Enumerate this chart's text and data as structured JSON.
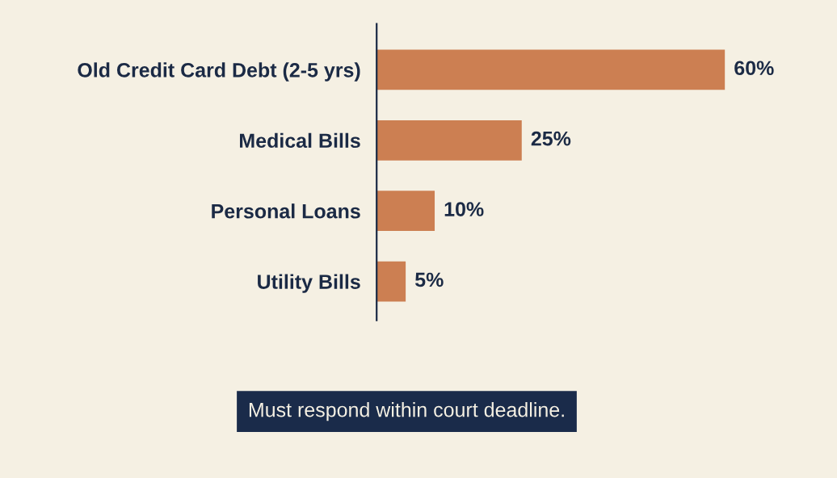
{
  "chart_data": {
    "type": "bar",
    "orientation": "horizontal",
    "categories": [
      "Old Credit Card Debt (2-5 yrs)",
      "Medical Bills",
      "Personal Loans",
      "Utility Bills"
    ],
    "values": [
      60,
      25,
      10,
      5
    ],
    "color": "#cc7f52",
    "value_labels": [
      "60%",
      "25%",
      "10%",
      "5%"
    ],
    "tick_labels": "y",
    "annotations": [
      "Must respond within court deadline."
    ]
  }
}
